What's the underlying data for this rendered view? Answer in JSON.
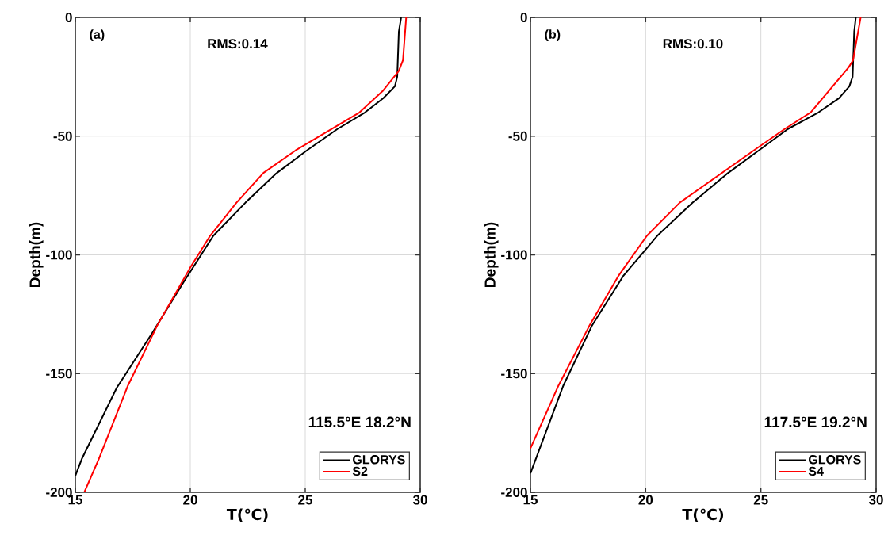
{
  "chart_data": [
    {
      "type": "line",
      "xlabel": "T(℃)",
      "ylabel": "Depth(m)",
      "annotations": [
        "(a)",
        "RMS:0.14",
        "115.5°E 18.2°N"
      ],
      "xlim": [
        15,
        30
      ],
      "xticks": [
        15,
        20,
        25,
        30
      ],
      "ylim": [
        -200,
        0
      ],
      "yticks": [
        -200,
        -150,
        -100,
        -50,
        0
      ],
      "grid": true,
      "legend": "bottom right",
      "series": [
        {
          "name": "GLORYS",
          "color": "#000000",
          "x": [
            29.17,
            29.07,
            29.0,
            28.9,
            28.4,
            27.6,
            26.4,
            25.07,
            23.7,
            22.4,
            21.0,
            19.74,
            18.34,
            16.8,
            15.28,
            15.0
          ],
          "values": [
            0,
            -6,
            -25,
            -29,
            -34,
            -40,
            -47,
            -56,
            -66,
            -78,
            -92,
            -111,
            -133,
            -156,
            -186,
            -193
          ]
        },
        {
          "name": "S2",
          "color": "#ff0000",
          "x": [
            29.39,
            29.25,
            29.07,
            28.37,
            27.36,
            24.58,
            23.18,
            22.01,
            20.86,
            20.02,
            18.55,
            17.29,
            16.02,
            15.39
          ],
          "values": [
            0,
            -18,
            -22.5,
            -31,
            -40,
            -56,
            -65.5,
            -78,
            -92,
            -105,
            -130,
            -155,
            -186,
            -200
          ]
        }
      ]
    },
    {
      "type": "line",
      "xlabel": "T(℃)",
      "ylabel": "Depth(m)",
      "annotations": [
        "(b)",
        "RMS:0.10",
        "117.5°E 19.2°N"
      ],
      "xlim": [
        15,
        30
      ],
      "xticks": [
        15,
        20,
        25,
        30
      ],
      "ylim": [
        -200,
        0
      ],
      "yticks": [
        -200,
        -150,
        -100,
        -50,
        0
      ],
      "grid": true,
      "legend": "bottom right",
      "series": [
        {
          "name": "GLORYS",
          "color": "#000000",
          "x": [
            29.12,
            29.05,
            28.98,
            28.84,
            28.39,
            27.5,
            26.17,
            24.91,
            23.51,
            22.04,
            20.5,
            19.02,
            17.66,
            16.43,
            15.0
          ],
          "values": [
            0,
            -6,
            -25,
            -29,
            -34,
            -40,
            -47,
            -56,
            -66,
            -78,
            -92,
            -109,
            -130,
            -155,
            -192
          ]
        },
        {
          "name": "S4",
          "color": "#ff0000",
          "x": [
            29.33,
            29.0,
            28.81,
            27.16,
            26.03,
            24.84,
            21.48,
            20.05,
            18.81,
            17.55,
            16.22,
            15.0
          ],
          "values": [
            0,
            -18,
            -21,
            -40,
            -47,
            -55,
            -78,
            -92,
            -109,
            -130,
            -155,
            -181.5
          ]
        }
      ]
    }
  ]
}
